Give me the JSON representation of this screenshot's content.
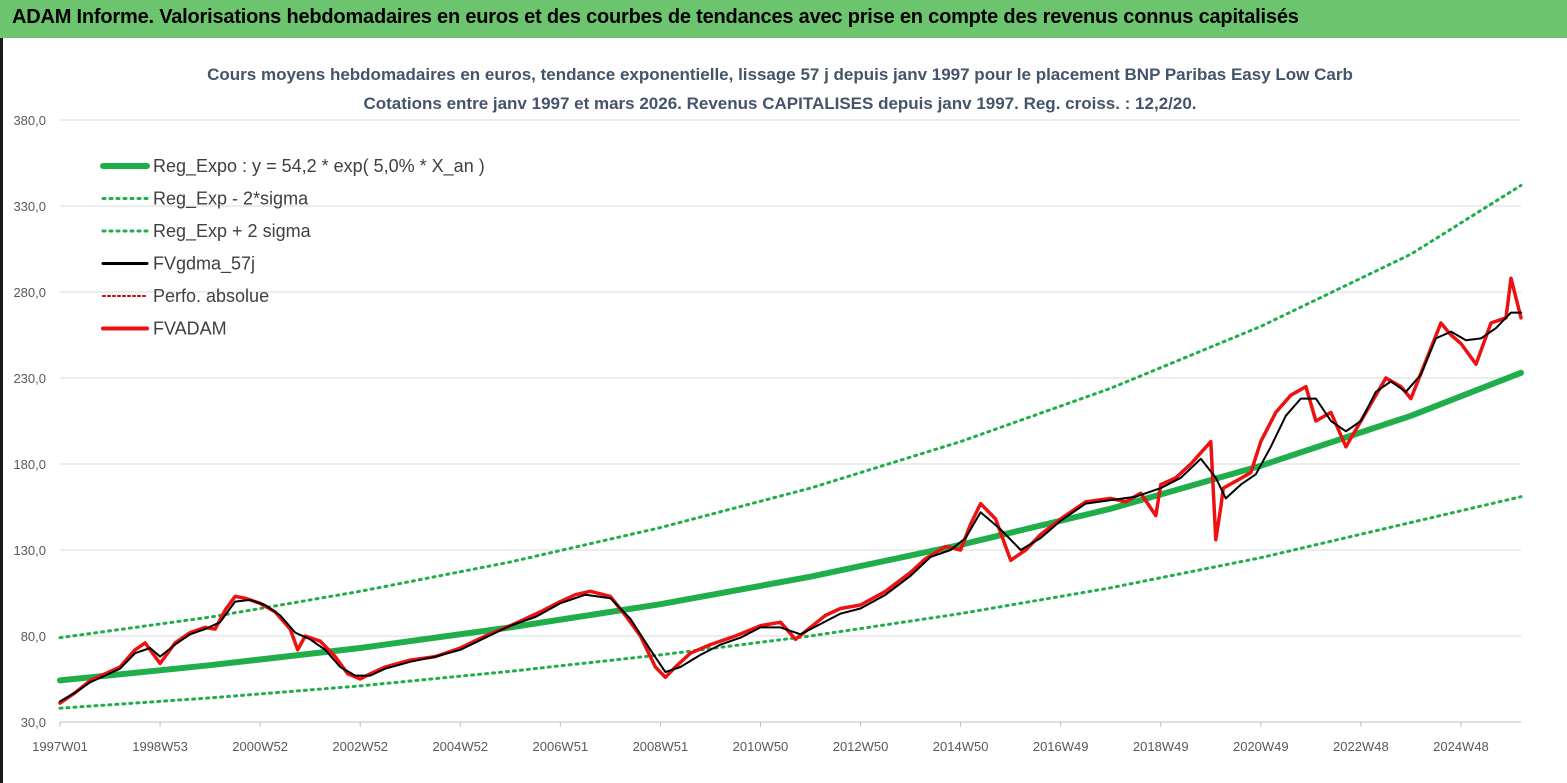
{
  "header": {
    "title": "ADAM Informe. Valorisations hebdomadaires en euros et des courbes de tendances avec prise en compte des revenus connus capitalisés"
  },
  "colors": {
    "banner": "#6cc46e",
    "reg_expo": "#1fae4a",
    "sigma_bands": "#1fae4a",
    "fvgdma": "#000000",
    "perfo": "#d00000",
    "fvadam": "#ee1111",
    "grid": "#d9d9d9"
  },
  "chart_data": {
    "type": "line",
    "title_line1": "Cours moyens hebdomadaires en euros, tendance exponentielle, lissage 57 j depuis janv 1997  pour le placement BNP  Paribas Easy Low Carb",
    "title_line2": "Cotations entre janv 1997 et mars 2026. Revenus CAPITALISES  depuis janv 1997. Reg. croiss. : 12,2/20.",
    "ylim": [
      30,
      390
    ],
    "yticks": [
      "30,0",
      "80,0",
      "130,0",
      "180,0",
      "230,0",
      "280,0",
      "330,0",
      "380,0"
    ],
    "xlim": [
      1997.0,
      2026.2
    ],
    "xticks": [
      {
        "label": "1997W01",
        "x": 1997.0
      },
      {
        "label": "1998W53",
        "x": 1999.0
      },
      {
        "label": "2000W52",
        "x": 2001.0
      },
      {
        "label": "2002W52",
        "x": 2003.0
      },
      {
        "label": "2004W52",
        "x": 2005.0
      },
      {
        "label": "2006W51",
        "x": 2007.0
      },
      {
        "label": "2008W51",
        "x": 2009.0
      },
      {
        "label": "2010W50",
        "x": 2011.0
      },
      {
        "label": "2012W50",
        "x": 2013.0
      },
      {
        "label": "2014W50",
        "x": 2015.0
      },
      {
        "label": "2016W49",
        "x": 2017.0
      },
      {
        "label": "2018W49",
        "x": 2019.0
      },
      {
        "label": "2020W49",
        "x": 2021.0
      },
      {
        "label": "2022W48",
        "x": 2023.0
      },
      {
        "label": "2024W48",
        "x": 2025.0
      }
    ],
    "legend": {
      "position": "top-left",
      "entries": [
        {
          "label": "Reg_Expo : y = 54,2 * exp( 5,0% *  X_an )",
          "style": "solid-thick",
          "color_key": "reg_expo"
        },
        {
          "label": "Reg_Exp - 2*sigma",
          "style": "dotted",
          "color_key": "sigma_bands"
        },
        {
          "label": "Reg_Exp + 2 sigma",
          "style": "dotted",
          "color_key": "sigma_bands"
        },
        {
          "label": "FVgdma_57j",
          "style": "solid",
          "color_key": "fvgdma"
        },
        {
          "label": "Perfo. absolue",
          "style": "dotted",
          "color_key": "perfo"
        },
        {
          "label": "FVADAM",
          "style": "solid-thick",
          "color_key": "fvadam"
        }
      ]
    },
    "series": [
      {
        "name": "Reg_Expo : y = 54,2 * exp( 5,0% *  X_an )",
        "x": [
          1997.0,
          2000.0,
          2003.0,
          2006.0,
          2009.0,
          2012.0,
          2015.0,
          2018.0,
          2021.0,
          2024.0,
          2026.2
        ],
        "y": [
          54.2,
          63.0,
          73.0,
          85.0,
          98.5,
          114.5,
          133.0,
          154.0,
          179.0,
          208.0,
          233.0
        ]
      },
      {
        "name": "Reg_Exp - 2*sigma",
        "x": [
          1997.0,
          2000.0,
          2003.0,
          2006.0,
          2009.0,
          2012.0,
          2015.0,
          2018.0,
          2021.0,
          2024.0,
          2026.2
        ],
        "y": [
          38.0,
          44.0,
          51.0,
          59.5,
          69.0,
          80.0,
          93.0,
          108.0,
          125.5,
          146.0,
          161.0
        ]
      },
      {
        "name": "Reg_Exp + 2 sigma",
        "x": [
          1997.0,
          2000.0,
          2003.0,
          2006.0,
          2009.0,
          2012.0,
          2015.0,
          2018.0,
          2021.0,
          2024.0,
          2026.2
        ],
        "y": [
          79.0,
          91.0,
          106.0,
          123.0,
          143.0,
          166.0,
          193.0,
          224.0,
          260.0,
          302.0,
          342.0
        ]
      },
      {
        "name": "FVADAM",
        "x": [
          1997.0,
          1997.3,
          1997.6,
          1997.9,
          1998.2,
          1998.5,
          1998.7,
          1998.85,
          1999.0,
          1999.3,
          1999.6,
          1999.9,
          2000.1,
          2000.3,
          2000.5,
          2000.7,
          2001.0,
          2001.3,
          2001.6,
          2001.75,
          2001.9,
          2002.2,
          2002.5,
          2002.75,
          2003.0,
          2003.2,
          2003.5,
          2004.0,
          2004.5,
          2005.0,
          2005.5,
          2006.0,
          2006.3,
          2006.6,
          2007.0,
          2007.3,
          2007.6,
          2008.0,
          2008.3,
          2008.6,
          2008.9,
          2009.1,
          2009.3,
          2009.6,
          2010.0,
          2010.5,
          2011.0,
          2011.4,
          2011.7,
          2012.0,
          2012.3,
          2012.6,
          2013.0,
          2013.5,
          2014.0,
          2014.3,
          2014.7,
          2015.0,
          2015.2,
          2015.4,
          2015.7,
          2016.0,
          2016.3,
          2016.6,
          2017.0,
          2017.5,
          2018.0,
          2018.3,
          2018.6,
          2018.9,
          2019.0,
          2019.3,
          2019.6,
          2020.0,
          2020.1,
          2020.2,
          2020.25,
          2020.5,
          2020.8,
          2021.0,
          2021.3,
          2021.6,
          2021.9,
          2022.1,
          2022.4,
          2022.7,
          2022.9,
          2023.2,
          2023.5,
          2023.8,
          2024.0,
          2024.3,
          2024.6,
          2024.8,
          2025.0,
          2025.3,
          2025.6,
          2025.9,
          2026.0,
          2026.2
        ],
        "y": [
          41,
          47,
          54,
          58,
          62,
          72,
          76,
          70,
          64,
          76,
          82,
          85,
          84,
          95,
          103,
          102,
          99,
          94,
          84,
          72,
          80,
          77,
          68,
          58,
          55,
          58,
          62,
          66,
          68,
          73,
          80,
          86,
          90,
          94,
          100,
          104,
          106,
          103,
          92,
          80,
          62,
          56,
          62,
          70,
          75,
          80,
          86,
          88,
          78,
          85,
          92,
          96,
          98,
          106,
          117,
          125,
          132,
          130,
          145,
          157,
          148,
          124,
          130,
          139,
          148,
          158,
          160,
          158,
          163,
          150,
          168,
          172,
          180,
          193,
          136,
          155,
          166,
          170,
          175,
          193,
          210,
          220,
          225,
          205,
          210,
          190,
          200,
          215,
          230,
          225,
          218,
          240,
          262,
          255,
          250,
          238,
          262,
          265,
          288,
          265
        ]
      },
      {
        "name": "FVgdma_57j",
        "x": [
          1997.0,
          1997.3,
          1997.6,
          1997.9,
          1998.2,
          1998.5,
          1998.8,
          1999.0,
          1999.3,
          1999.6,
          1999.9,
          2000.2,
          2000.5,
          2000.8,
          2001.1,
          2001.4,
          2001.7,
          2002.0,
          2002.3,
          2002.6,
          2002.9,
          2003.2,
          2003.5,
          2004.0,
          2004.5,
          2005.0,
          2005.5,
          2006.0,
          2006.5,
          2007.0,
          2007.5,
          2008.0,
          2008.4,
          2008.8,
          2009.1,
          2009.4,
          2009.8,
          2010.2,
          2010.6,
          2011.0,
          2011.4,
          2011.8,
          2012.2,
          2012.6,
          2013.0,
          2013.5,
          2014.0,
          2014.4,
          2014.8,
          2015.1,
          2015.4,
          2015.8,
          2016.2,
          2016.6,
          2017.0,
          2017.5,
          2018.0,
          2018.5,
          2019.0,
          2019.4,
          2019.8,
          2020.1,
          2020.3,
          2020.6,
          2020.9,
          2021.2,
          2021.5,
          2021.8,
          2022.1,
          2022.4,
          2022.7,
          2023.0,
          2023.3,
          2023.6,
          2023.9,
          2024.2,
          2024.5,
          2024.8,
          2025.1,
          2025.4,
          2025.7,
          2026.0,
          2026.2
        ],
        "y": [
          42,
          47,
          53,
          57,
          61,
          70,
          73,
          68,
          75,
          81,
          84,
          88,
          100,
          101,
          98,
          92,
          82,
          78,
          72,
          62,
          57,
          57,
          61,
          65,
          68,
          72,
          79,
          86,
          91,
          99,
          104,
          102,
          90,
          72,
          59,
          62,
          69,
          75,
          79,
          85,
          85,
          81,
          87,
          93,
          96,
          104,
          115,
          126,
          130,
          137,
          152,
          142,
          130,
          137,
          147,
          157,
          159,
          161,
          166,
          172,
          183,
          172,
          160,
          168,
          174,
          190,
          208,
          218,
          218,
          205,
          199,
          205,
          222,
          228,
          222,
          232,
          253,
          257,
          252,
          253,
          259,
          268,
          268
        ]
      }
    ]
  }
}
